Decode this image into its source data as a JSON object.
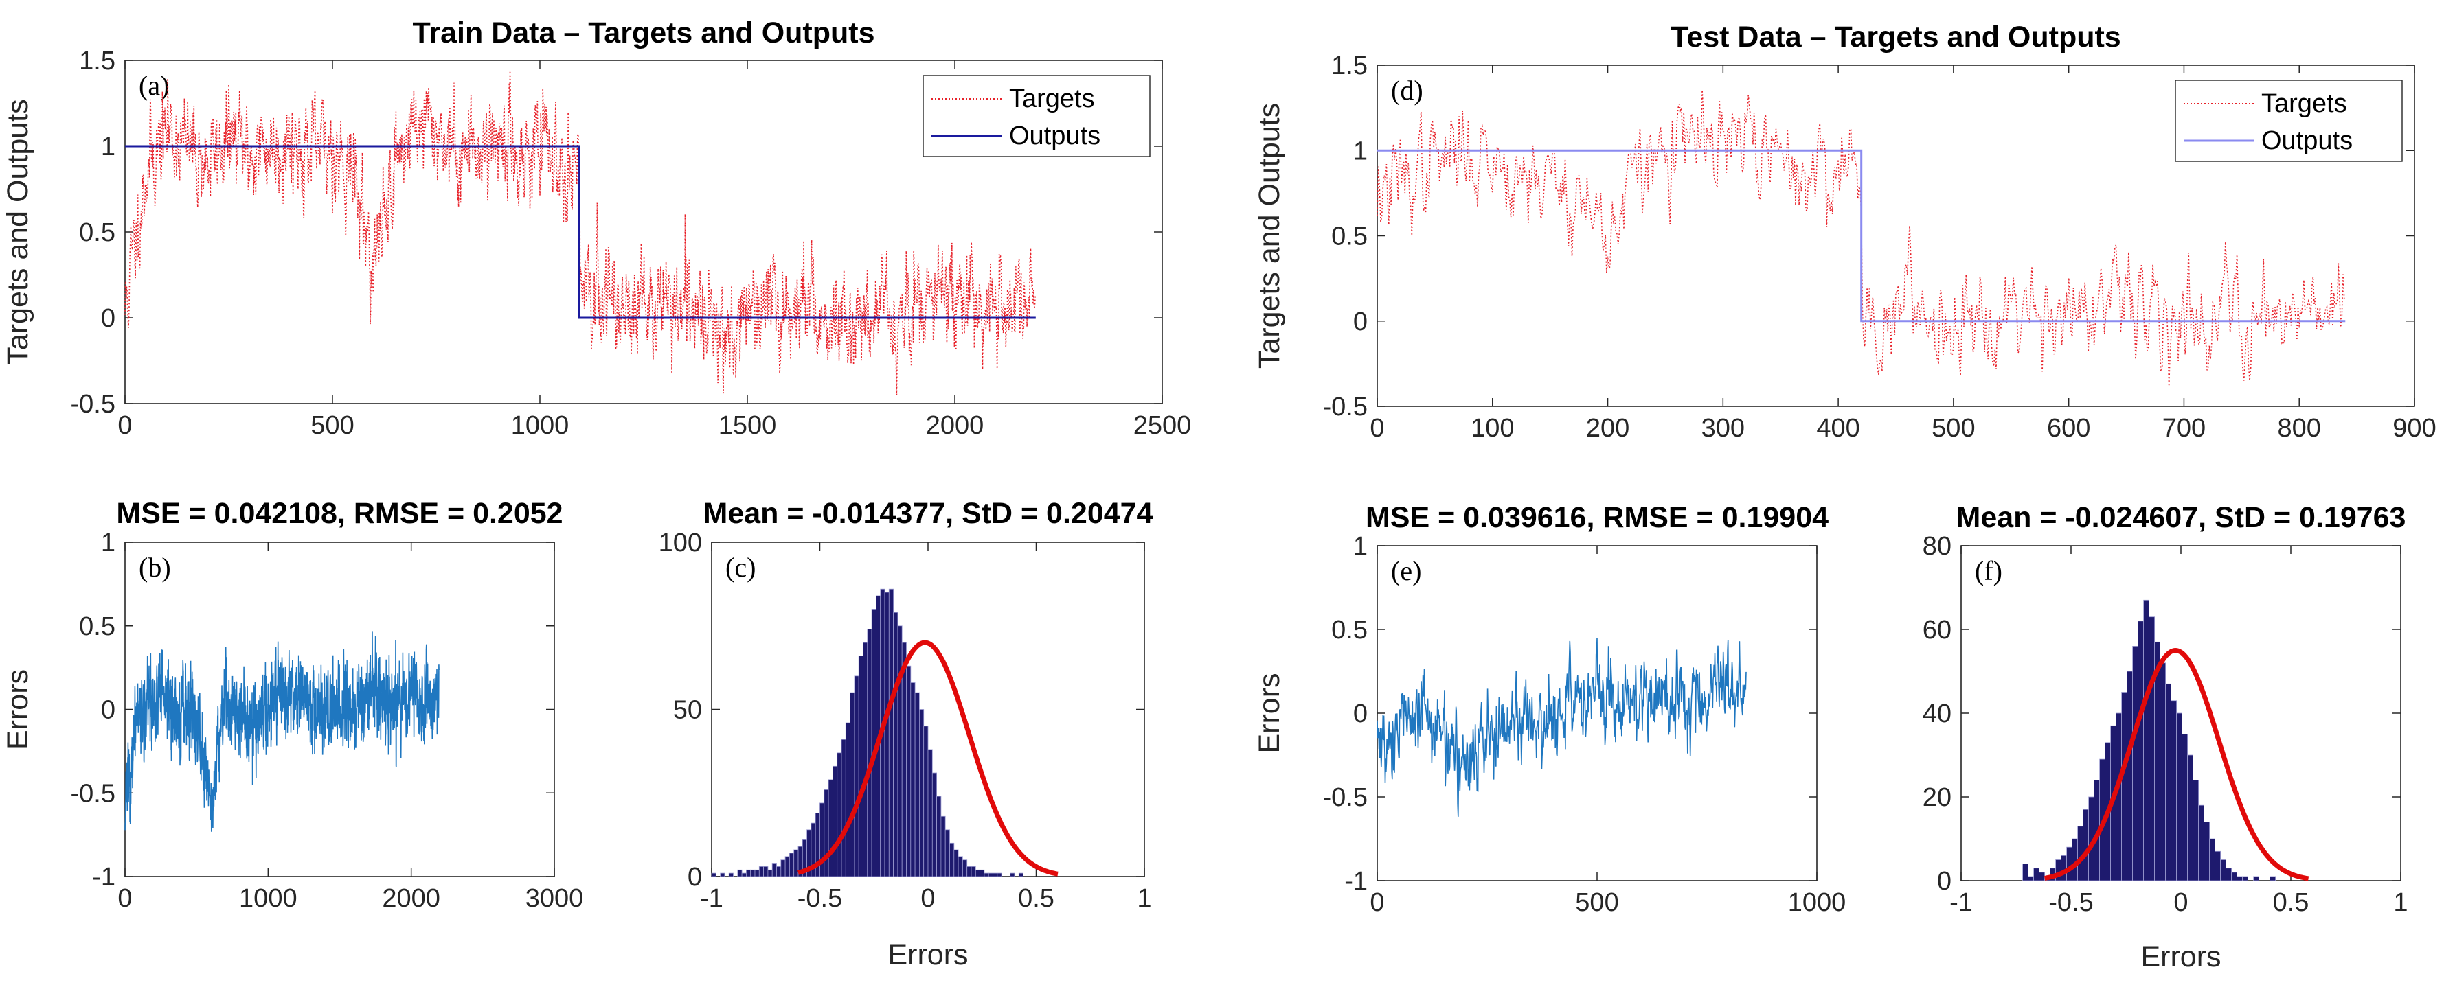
{
  "colors": {
    "targets": "#e8222a",
    "outputs_train": "#1a1a9e",
    "outputs_test": "#8a8af0",
    "errors_line": "#1f77c0",
    "hist_bar": "#1e1a6e",
    "normal_fit": "#e10a0a",
    "axis": "#262626"
  },
  "chart_data": [
    {
      "id": "a",
      "type": "line",
      "panel_letter": "(a)",
      "title": "Train Data – Targets and Outputs",
      "xlabel": "",
      "ylabel": "Targets and Outputs",
      "xlim": [
        0,
        2500
      ],
      "ylim": [
        -0.5,
        1.5
      ],
      "xticks": [
        0,
        500,
        1000,
        1500,
        2000,
        2500
      ],
      "yticks": [
        -0.5,
        0,
        0.5,
        1,
        1.5
      ],
      "xticklabels": [
        "0",
        "500",
        "1000",
        "1500",
        "2000",
        "2500"
      ],
      "yticklabels": [
        "-0.5",
        "0",
        "0.5",
        "1",
        "1.5"
      ],
      "legend": {
        "position": "top-right",
        "entries": [
          "Targets",
          "Outputs"
        ]
      },
      "series": [
        {
          "name": "Targets",
          "style": "dotted",
          "n_points": 2195,
          "switch_index": 1095,
          "x": [
            0,
            50,
            100,
            150,
            200,
            250,
            300,
            350,
            400,
            450,
            500,
            550,
            600,
            650,
            700,
            750,
            800,
            850,
            900,
            950,
            1000,
            1050,
            1094,
            1100,
            1150,
            1200,
            1250,
            1300,
            1350,
            1400,
            1450,
            1500,
            1550,
            1600,
            1650,
            1700,
            1750,
            1800,
            1850,
            1900,
            1950,
            2000,
            2050,
            2100,
            2150,
            2195
          ],
          "y": [
            0.05,
            0.85,
            1.1,
            1.0,
            0.9,
            1.05,
            0.95,
            1.0,
            1.05,
            0.95,
            1.0,
            0.85,
            0.3,
            0.9,
            1.15,
            1.1,
            0.95,
            1.0,
            1.05,
            0.95,
            1.0,
            0.9,
            0.95,
            0.05,
            0.15,
            0.1,
            0.05,
            0.1,
            0.0,
            0.05,
            -0.1,
            0.05,
            0.0,
            0.1,
            0.05,
            0.0,
            -0.05,
            0.1,
            0.0,
            0.05,
            0.1,
            0.15,
            0.05,
            0.1,
            0.0,
            0.15
          ]
        },
        {
          "name": "Outputs",
          "style": "solid",
          "x": [
            0,
            1095,
            1095,
            2195
          ],
          "y": [
            1,
            1,
            0,
            0
          ]
        }
      ]
    },
    {
      "id": "b",
      "type": "line",
      "panel_letter": "(b)",
      "title": "MSE = 0.042108, RMSE = 0.2052",
      "xlabel": "",
      "ylabel": "Errors",
      "xlim": [
        0,
        3000
      ],
      "ylim": [
        -1,
        1
      ],
      "xticks": [
        0,
        1000,
        2000,
        3000
      ],
      "yticks": [
        -1,
        -0.5,
        0,
        0.5,
        1
      ],
      "xticklabels": [
        "0",
        "1000",
        "2000",
        "3000"
      ],
      "yticklabels": [
        "-1",
        "-0.5",
        "0",
        "0.5",
        "1"
      ],
      "series": [
        {
          "name": "Errors",
          "n_points": 2195,
          "x": [
            0,
            100,
            200,
            300,
            400,
            500,
            600,
            700,
            800,
            900,
            1000,
            1100,
            1200,
            1300,
            1400,
            1500,
            1600,
            1700,
            1800,
            1900,
            2000,
            2100,
            2195
          ],
          "y": [
            -0.6,
            0.0,
            0.0,
            0.05,
            0.0,
            -0.05,
            -0.6,
            0.05,
            0.0,
            -0.1,
            0.0,
            0.05,
            0.1,
            0.05,
            0.0,
            0.0,
            0.05,
            0.1,
            0.0,
            0.05,
            0.1,
            0.05,
            0.1
          ]
        }
      ]
    },
    {
      "id": "c",
      "type": "bar",
      "panel_letter": "(c)",
      "title": "Mean = -0.014377, StD = 0.20474",
      "xlabel": "Errors",
      "ylabel": "",
      "xlim": [
        -1,
        1
      ],
      "ylim": [
        0,
        100
      ],
      "xticks": [
        -1,
        -0.5,
        0,
        0.5,
        1
      ],
      "yticks": [
        0,
        50,
        100
      ],
      "xticklabels": [
        "-1",
        "-0.5",
        "0",
        "0.5",
        "1"
      ],
      "yticklabels": [
        "0",
        "50",
        "100"
      ],
      "bin_start": -1.0,
      "bin_width": 0.02,
      "counts": [
        1,
        0,
        1,
        0,
        1,
        0,
        2,
        1,
        2,
        2,
        2,
        3,
        3,
        2,
        4,
        3,
        5,
        6,
        7,
        8,
        9,
        11,
        14,
        16,
        19,
        22,
        26,
        29,
        33,
        37,
        41,
        46,
        55,
        60,
        66,
        70,
        74,
        80,
        84,
        86,
        85,
        86,
        79,
        75,
        70,
        63,
        58,
        55,
        50,
        45,
        38,
        31,
        24,
        18,
        14,
        10,
        8,
        6,
        5,
        3,
        3,
        2,
        2,
        1,
        1,
        1,
        1,
        0,
        0,
        1,
        0,
        1,
        0,
        0,
        0,
        0,
        0,
        0,
        0,
        0,
        0,
        0,
        0,
        0,
        0,
        0,
        0,
        0,
        0,
        0,
        0,
        0,
        0,
        0,
        0,
        0,
        0,
        0,
        0,
        0
      ],
      "normal_fit": {
        "mean": -0.014377,
        "std": 0.20474,
        "peak": 70,
        "x_range": [
          -0.6,
          0.6
        ]
      }
    },
    {
      "id": "d",
      "type": "line",
      "panel_letter": "(d)",
      "title": "Test Data – Targets and Outputs",
      "xlabel": "",
      "ylabel": "Targets and Outputs",
      "xlim": [
        0,
        900
      ],
      "ylim": [
        -0.5,
        1.5
      ],
      "xticks": [
        0,
        100,
        200,
        300,
        400,
        500,
        600,
        700,
        800,
        900
      ],
      "yticks": [
        -0.5,
        0,
        0.5,
        1,
        1.5
      ],
      "xticklabels": [
        "0",
        "100",
        "200",
        "300",
        "400",
        "500",
        "600",
        "700",
        "800",
        "900"
      ],
      "yticklabels": [
        "-0.5",
        "0",
        "0.5",
        "1",
        "1.5"
      ],
      "legend": {
        "position": "top-right",
        "entries": [
          "Targets",
          "Outputs"
        ]
      },
      "series": [
        {
          "name": "Targets",
          "style": "dotted",
          "n_points": 840,
          "switch_index": 420,
          "x": [
            0,
            20,
            40,
            60,
            80,
            100,
            120,
            140,
            160,
            180,
            200,
            220,
            240,
            260,
            280,
            300,
            320,
            340,
            360,
            380,
            400,
            419,
            421,
            440,
            460,
            480,
            500,
            520,
            540,
            560,
            580,
            600,
            620,
            640,
            660,
            680,
            700,
            720,
            740,
            760,
            780,
            800,
            820,
            840
          ],
          "y": [
            0.75,
            0.8,
            0.9,
            0.95,
            1.0,
            0.95,
            0.9,
            0.85,
            0.8,
            0.7,
            0.5,
            0.8,
            0.95,
            1.0,
            1.05,
            1.0,
            1.1,
            0.95,
            0.9,
            0.85,
            0.9,
            0.95,
            0.05,
            0.0,
            0.1,
            0.05,
            0.0,
            0.1,
            0.05,
            0.15,
            0.05,
            0.1,
            0.0,
            0.1,
            0.05,
            0.1,
            0.0,
            0.05,
            0.1,
            0.0,
            0.05,
            0.1,
            0.15,
            0.1
          ]
        },
        {
          "name": "Outputs",
          "style": "solid",
          "x": [
            0,
            420,
            420,
            840
          ],
          "y": [
            1,
            1,
            0,
            0
          ]
        }
      ]
    },
    {
      "id": "e",
      "type": "line",
      "panel_letter": "(e)",
      "title": "MSE = 0.039616, RMSE = 0.19904",
      "xlabel": "",
      "ylabel": "Errors",
      "xlim": [
        0,
        1000
      ],
      "ylim": [
        -1,
        1
      ],
      "xticks": [
        0,
        500,
        1000
      ],
      "yticks": [
        -1,
        -0.5,
        0,
        0.5,
        1
      ],
      "xticklabels": [
        "0",
        "500",
        "1000"
      ],
      "yticklabels": [
        "-1",
        "-0.5",
        "0",
        "0.5",
        "1"
      ],
      "series": [
        {
          "name": "Errors",
          "n_points": 840,
          "x": [
            0,
            50,
            100,
            150,
            200,
            250,
            300,
            350,
            400,
            450,
            500,
            550,
            600,
            650,
            700,
            750,
            800,
            840
          ],
          "y": [
            -0.2,
            -0.1,
            0.0,
            -0.1,
            -0.3,
            -0.15,
            -0.1,
            0.0,
            -0.05,
            0.05,
            0.1,
            0.05,
            0.1,
            0.1,
            0.05,
            0.1,
            0.15,
            0.15
          ]
        }
      ]
    },
    {
      "id": "f",
      "type": "bar",
      "panel_letter": "(f)",
      "title": "Mean = -0.024607, StD = 0.19763",
      "xlabel": "Errors",
      "ylabel": "",
      "xlim": [
        -1,
        1
      ],
      "ylim": [
        0,
        80
      ],
      "xticks": [
        -1,
        -0.5,
        0,
        0.5,
        1
      ],
      "yticks": [
        0,
        20,
        40,
        60,
        80
      ],
      "xticklabels": [
        "-1",
        "-0.5",
        "0",
        "0.5",
        "1"
      ],
      "yticklabels": [
        "0",
        "20",
        "40",
        "60",
        "80"
      ],
      "bin_start": -0.72,
      "bin_width": 0.025,
      "counts": [
        4,
        1,
        3,
        2,
        1,
        3,
        5,
        6,
        8,
        10,
        13,
        17,
        20,
        24,
        29,
        33,
        37,
        40,
        45,
        50,
        56,
        62,
        67,
        63,
        57,
        52,
        47,
        43,
        40,
        35,
        30,
        24,
        18,
        14,
        10,
        7,
        5,
        3,
        2,
        1,
        1,
        0,
        1,
        0,
        0,
        1,
        0,
        0,
        0,
        0,
        0,
        0,
        0,
        0,
        0,
        0
      ],
      "normal_fit": {
        "mean": -0.024607,
        "std": 0.19763,
        "peak": 55,
        "x_range": [
          -0.62,
          0.58
        ]
      }
    }
  ]
}
